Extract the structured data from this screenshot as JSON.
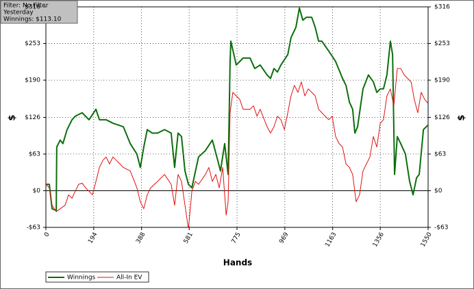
{
  "chart_data": {
    "type": "line",
    "info_box": [
      "Filter: No Filter",
      "Yesterday",
      "Winnings: $113.10"
    ],
    "x_label": "Hands",
    "y_label": "$",
    "xlim": [
      0,
      1550
    ],
    "xticks": [
      0,
      194,
      388,
      581,
      775,
      969,
      1163,
      1356,
      1550
    ],
    "ylim": [
      -63,
      316
    ],
    "yticks": [
      {
        "value": -63,
        "label": "-$63"
      },
      {
        "value": 0,
        "label": "$0"
      },
      {
        "value": 63,
        "label": "$63"
      },
      {
        "value": 126,
        "label": "$126"
      },
      {
        "value": 190,
        "label": "$190"
      },
      {
        "value": 253,
        "label": "$253"
      },
      {
        "value": 316,
        "label": "$316"
      }
    ],
    "grid": true,
    "series": [
      {
        "name": "Winnings",
        "color": "#0b6e0b",
        "width": 2,
        "x": [
          0,
          14,
          25,
          42,
          44,
          58,
          69,
          86,
          106,
          119,
          147,
          175,
          203,
          217,
          244,
          272,
          314,
          342,
          369,
          383,
          397,
          411,
          431,
          453,
          481,
          508,
          522,
          536,
          550,
          564,
          578,
          592,
          619,
          647,
          675,
          697,
          708,
          725,
          739,
          747,
          750,
          772,
          800,
          828,
          847,
          869,
          897,
          911,
          925,
          939,
          953,
          981,
          994,
          1014,
          1028,
          1042,
          1056,
          1078,
          1092,
          1106,
          1119,
          1147,
          1175,
          1203,
          1217,
          1231,
          1244,
          1253,
          1264,
          1286,
          1308,
          1328,
          1342,
          1356,
          1369,
          1383,
          1397,
          1406,
          1414,
          1425,
          1439,
          1458,
          1475,
          1489,
          1503,
          1514,
          1531,
          1550
        ],
        "values": [
          11,
          11,
          -31,
          -34,
          75,
          87,
          81,
          105,
          122,
          128,
          134,
          122,
          140,
          122,
          122,
          116,
          110,
          81,
          63,
          40,
          75,
          105,
          99,
          99,
          105,
          99,
          40,
          99,
          93,
          34,
          11,
          5,
          58,
          69,
          87,
          52,
          34,
          81,
          28,
          222,
          257,
          216,
          228,
          228,
          210,
          216,
          199,
          193,
          210,
          204,
          216,
          234,
          263,
          281,
          314,
          293,
          298,
          298,
          281,
          257,
          257,
          240,
          222,
          193,
          181,
          152,
          140,
          99,
          110,
          175,
          199,
          187,
          169,
          175,
          175,
          199,
          257,
          234,
          28,
          93,
          81,
          63,
          16,
          -7,
          22,
          28,
          105,
          113
        ]
      },
      {
        "name": "All-In EV",
        "color": "#e01010",
        "width": 1,
        "x": [
          0,
          14,
          25,
          42,
          58,
          78,
          92,
          106,
          119,
          133,
          147,
          161,
          175,
          189,
          203,
          217,
          231,
          244,
          258,
          272,
          286,
          314,
          342,
          369,
          383,
          397,
          411,
          425,
          453,
          481,
          508,
          522,
          536,
          550,
          564,
          578,
          592,
          606,
          619,
          647,
          661,
          675,
          689,
          703,
          717,
          731,
          739,
          747,
          758,
          772,
          786,
          800,
          828,
          842,
          856,
          869,
          897,
          911,
          925,
          939,
          953,
          967,
          981,
          994,
          1008,
          1022,
          1036,
          1050,
          1064,
          1078,
          1092,
          1106,
          1119,
          1147,
          1161,
          1175,
          1189,
          1203,
          1217,
          1231,
          1244,
          1258,
          1272,
          1286,
          1300,
          1314,
          1328,
          1342,
          1356,
          1369,
          1383,
          1397,
          1411,
          1425,
          1439,
          1453,
          1467,
          1481,
          1494,
          1508,
          1522,
          1536,
          1550
        ],
        "values": [
          11,
          5,
          -25,
          -36,
          -31,
          -25,
          -7,
          -13,
          -1,
          11,
          13,
          5,
          -1,
          -7,
          16,
          40,
          52,
          58,
          46,
          58,
          52,
          40,
          34,
          5,
          -19,
          -31,
          -7,
          5,
          16,
          28,
          11,
          -25,
          28,
          16,
          -25,
          -66,
          -1,
          16,
          11,
          28,
          40,
          16,
          28,
          5,
          40,
          -42,
          -19,
          134,
          169,
          163,
          157,
          140,
          140,
          146,
          128,
          140,
          110,
          99,
          110,
          128,
          122,
          105,
          134,
          163,
          181,
          169,
          187,
          163,
          175,
          169,
          163,
          140,
          134,
          122,
          128,
          93,
          81,
          75,
          46,
          40,
          28,
          -19,
          -7,
          34,
          46,
          58,
          93,
          75,
          116,
          122,
          163,
          175,
          146,
          210,
          210,
          199,
          193,
          187,
          157,
          134,
          169,
          157,
          150
        ]
      }
    ]
  }
}
